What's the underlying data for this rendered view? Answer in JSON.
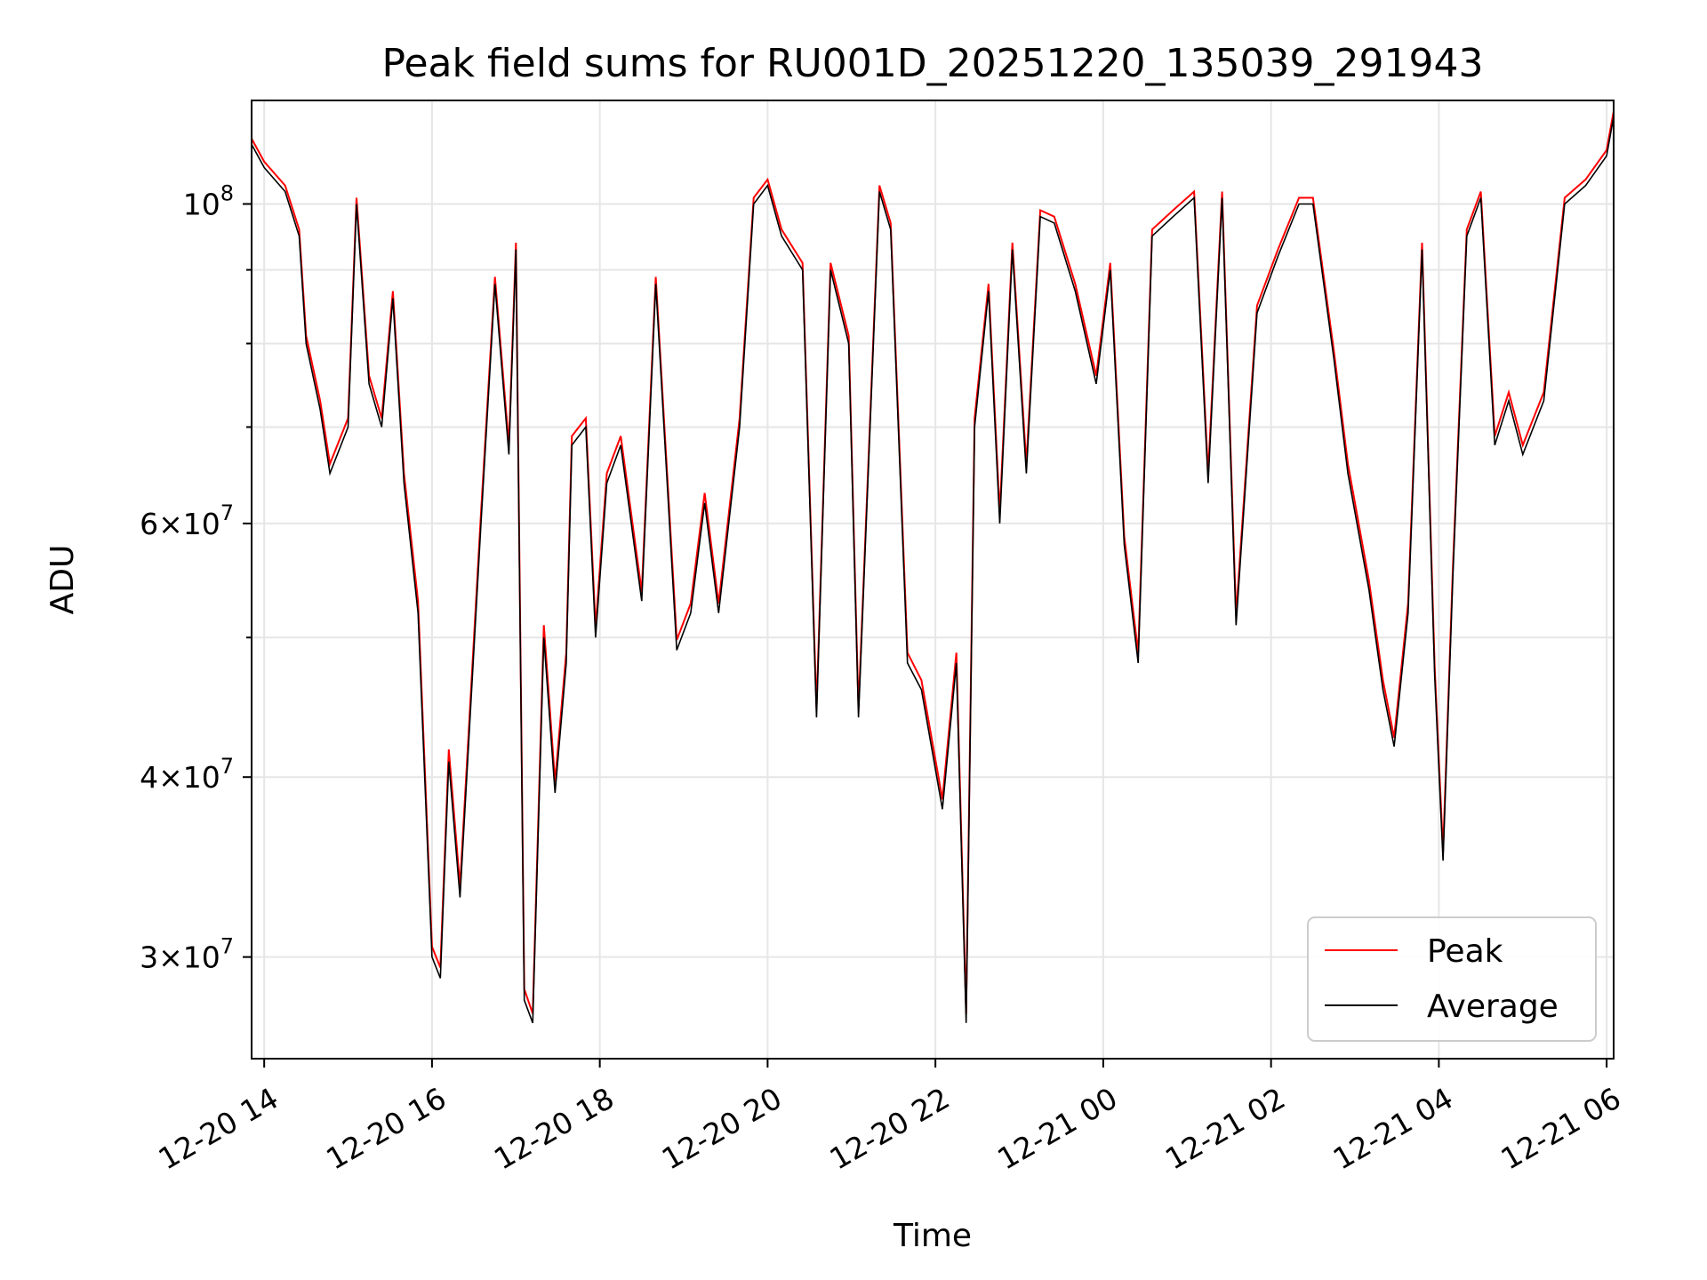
{
  "chart_data": {
    "type": "line",
    "title": "Peak field sums for RU001D_20251220_135039_291943",
    "xlabel": "Time",
    "ylabel": "ADU",
    "x_scale": "time",
    "y_scale": "log",
    "xlim": [
      "2025-12-20 13:51",
      "2025-12-21 06:05"
    ],
    "ylim": [
      25500000,
      118000000
    ],
    "grid": true,
    "legend_position": "lower-right",
    "x_ticks": [
      {
        "value": "2025-12-20 14:00",
        "label": "12-20 14"
      },
      {
        "value": "2025-12-20 16:00",
        "label": "12-20 16"
      },
      {
        "value": "2025-12-20 18:00",
        "label": "12-20 18"
      },
      {
        "value": "2025-12-20 20:00",
        "label": "12-20 20"
      },
      {
        "value": "2025-12-20 22:00",
        "label": "12-20 22"
      },
      {
        "value": "2025-12-21 00:00",
        "label": "12-21 00"
      },
      {
        "value": "2025-12-21 02:00",
        "label": "12-21 02"
      },
      {
        "value": "2025-12-21 04:00",
        "label": "12-21 04"
      },
      {
        "value": "2025-12-21 06:00",
        "label": "12-21 06"
      }
    ],
    "y_ticks": [
      {
        "value": 30000000,
        "mantissa": "3",
        "exponent": "7"
      },
      {
        "value": 40000000,
        "mantissa": "4",
        "exponent": "7"
      },
      {
        "value": 60000000,
        "mantissa": "6",
        "exponent": "7"
      },
      {
        "value": 100000000,
        "mantissa": "",
        "exponent": "8"
      }
    ],
    "y_minor_ticks": [
      50000000,
      70000000,
      80000000,
      90000000
    ],
    "series": [
      {
        "name": "Peak",
        "color": "#ff0000"
      },
      {
        "name": "Average",
        "color": "#000000"
      }
    ],
    "x": [
      "2025-12-20 13:51",
      "2025-12-20 14:00",
      "2025-12-20 14:15",
      "2025-12-20 14:25",
      "2025-12-20 14:30",
      "2025-12-20 14:40",
      "2025-12-20 14:47",
      "2025-12-20 15:00",
      "2025-12-20 15:06",
      "2025-12-20 15:15",
      "2025-12-20 15:24",
      "2025-12-20 15:32",
      "2025-12-20 15:40",
      "2025-12-20 15:50",
      "2025-12-20 16:00",
      "2025-12-20 16:06",
      "2025-12-20 16:12",
      "2025-12-20 16:20",
      "2025-12-20 16:35",
      "2025-12-20 16:45",
      "2025-12-20 16:55",
      "2025-12-20 17:00",
      "2025-12-20 17:06",
      "2025-12-20 17:12",
      "2025-12-20 17:20",
      "2025-12-20 17:28",
      "2025-12-20 17:36",
      "2025-12-20 17:40",
      "2025-12-20 17:50",
      "2025-12-20 17:57",
      "2025-12-20 18:05",
      "2025-12-20 18:15",
      "2025-12-20 18:30",
      "2025-12-20 18:40",
      "2025-12-20 18:55",
      "2025-12-20 19:05",
      "2025-12-20 19:15",
      "2025-12-20 19:25",
      "2025-12-20 19:40",
      "2025-12-20 19:50",
      "2025-12-20 20:00",
      "2025-12-20 20:10",
      "2025-12-20 20:25",
      "2025-12-20 20:35",
      "2025-12-20 20:45",
      "2025-12-20 20:58",
      "2025-12-20 21:05",
      "2025-12-20 21:20",
      "2025-12-20 21:28",
      "2025-12-20 21:40",
      "2025-12-20 21:50",
      "2025-12-20 22:05",
      "2025-12-20 22:15",
      "2025-12-20 22:22",
      "2025-12-20 22:28",
      "2025-12-20 22:38",
      "2025-12-20 22:46",
      "2025-12-20 22:55",
      "2025-12-20 23:05",
      "2025-12-20 23:15",
      "2025-12-20 23:25",
      "2025-12-20 23:40",
      "2025-12-20 23:55",
      "2025-12-21 00:05",
      "2025-12-21 00:15",
      "2025-12-21 00:25",
      "2025-12-21 00:35",
      "2025-12-21 00:50",
      "2025-12-21 01:05",
      "2025-12-21 01:15",
      "2025-12-21 01:25",
      "2025-12-21 01:35",
      "2025-12-21 01:50",
      "2025-12-21 02:05",
      "2025-12-21 02:20",
      "2025-12-21 02:30",
      "2025-12-21 02:45",
      "2025-12-21 02:55",
      "2025-12-21 03:10",
      "2025-12-21 03:20",
      "2025-12-21 03:28",
      "2025-12-21 03:38",
      "2025-12-21 03:48",
      "2025-12-21 03:57",
      "2025-12-21 04:03",
      "2025-12-21 04:10",
      "2025-12-21 04:20",
      "2025-12-21 04:30",
      "2025-12-21 04:40",
      "2025-12-21 04:50",
      "2025-12-21 05:00",
      "2025-12-21 05:15",
      "2025-12-21 05:30",
      "2025-12-21 05:45",
      "2025-12-21 06:00",
      "2025-12-21 06:05"
    ],
    "values": [
      110000000,
      106000000,
      102000000,
      95000000,
      80000000,
      72000000,
      65000000,
      70000000,
      100000000,
      75000000,
      70000000,
      86000000,
      64000000,
      52000000,
      30000000,
      29000000,
      41000000,
      33000000,
      60000000,
      88000000,
      67000000,
      93000000,
      28000000,
      27000000,
      50000000,
      39000000,
      48000000,
      68000000,
      70000000,
      50000000,
      64000000,
      68000000,
      53000000,
      88000000,
      49000000,
      52000000,
      62000000,
      52000000,
      70000000,
      100000000,
      103000000,
      95000000,
      90000000,
      44000000,
      90000000,
      80000000,
      44000000,
      102000000,
      96000000,
      48000000,
      46000000,
      38000000,
      48000000,
      27000000,
      70000000,
      87000000,
      60000000,
      93000000,
      65000000,
      98000000,
      97000000,
      87000000,
      75000000,
      90000000,
      58000000,
      48000000,
      95000000,
      98000000,
      101000000,
      64000000,
      101000000,
      51000000,
      84000000,
      92000000,
      100000000,
      100000000,
      78000000,
      65000000,
      54000000,
      46000000,
      42000000,
      52000000,
      93000000,
      47000000,
      35000000,
      55000000,
      95000000,
      101000000,
      68000000,
      73000000,
      67000000,
      73000000,
      100000000,
      103000000,
      108000000,
      115000000
    ],
    "peak_values": [
      111000000,
      107000000,
      103000000,
      96000000,
      81000000,
      73000000,
      66000000,
      71000000,
      101000000,
      76000000,
      71000000,
      87000000,
      65000000,
      53000000,
      30500000,
      29500000,
      41800000,
      33600000,
      61000000,
      89000000,
      68000000,
      94000000,
      28500000,
      27400000,
      51000000,
      39700000,
      48800000,
      69000000,
      71000000,
      50800000,
      65000000,
      69000000,
      53800000,
      89000000,
      49800000,
      52800000,
      63000000,
      52800000,
      71000000,
      101000000,
      104000000,
      96000000,
      91000000,
      44600000,
      91000000,
      81000000,
      44600000,
      103000000,
      97000000,
      48800000,
      46700000,
      38600000,
      48800000,
      27400000,
      71000000,
      88000000,
      61000000,
      94000000,
      66000000,
      99000000,
      98000000,
      88000000,
      76000000,
      91000000,
      58800000,
      48800000,
      96000000,
      99000000,
      102000000,
      65000000,
      102000000,
      51800000,
      85000000,
      93000000,
      101000000,
      101000000,
      79000000,
      66000000,
      54800000,
      46700000,
      42600000,
      52800000,
      94000000,
      47700000,
      35500000,
      55800000,
      96000000,
      102000000,
      69000000,
      74000000,
      68000000,
      74000000,
      101000000,
      104000000,
      109000000,
      116000000
    ]
  }
}
